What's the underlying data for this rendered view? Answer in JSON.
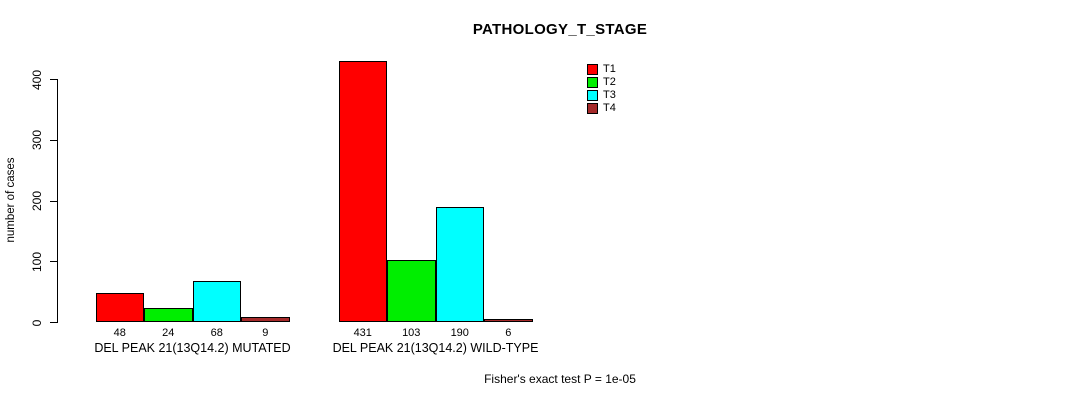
{
  "chart_data": {
    "type": "bar",
    "title": "PATHOLOGY_T_STAGE",
    "xlabel": "",
    "ylabel": "number of cases",
    "ylim": [
      0,
      450
    ],
    "yticks": [
      0,
      100,
      200,
      300,
      400
    ],
    "grid": false,
    "legend_position": "top-right",
    "categories": [
      "DEL PEAK 21(13Q14.2) MUTATED",
      "DEL PEAK 21(13Q14.2) WILD-TYPE"
    ],
    "series": [
      {
        "name": "T1",
        "color": "#FF0000",
        "values": [
          48,
          431
        ]
      },
      {
        "name": "T2",
        "color": "#00EE00",
        "values": [
          24,
          103
        ]
      },
      {
        "name": "T3",
        "color": "#00FFFF",
        "values": [
          68,
          190
        ]
      },
      {
        "name": "T4",
        "color": "#A52A2A",
        "values": [
          9,
          6
        ]
      }
    ],
    "annotation": "Fisher's exact test P = 1e-05"
  }
}
